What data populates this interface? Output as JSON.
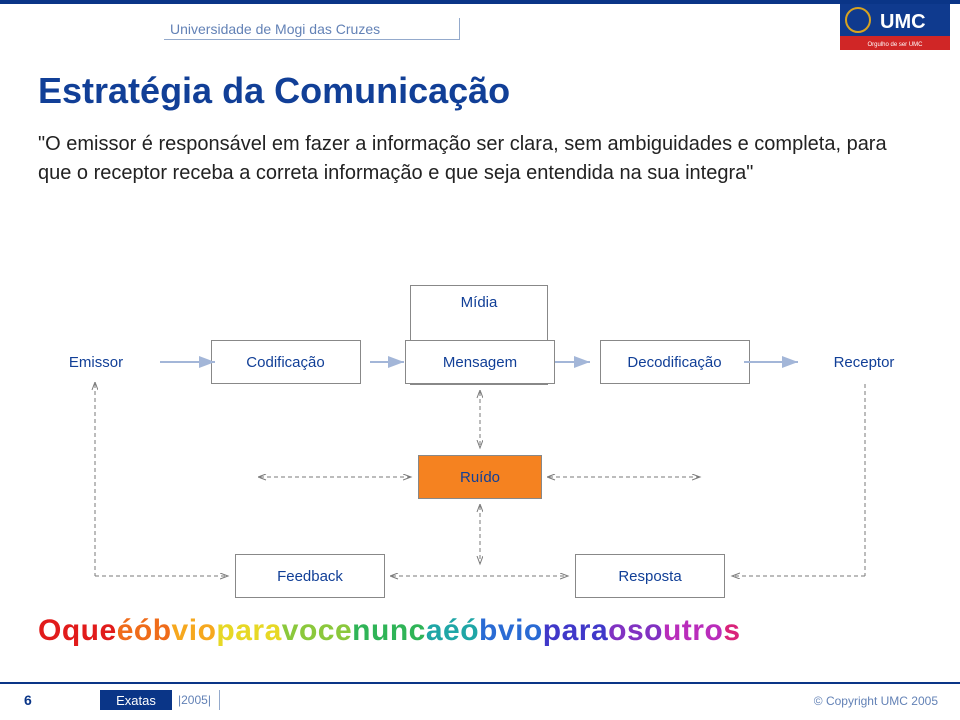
{
  "header": {
    "university": "Universidade de Mogi das Cruzes"
  },
  "logo": {
    "top_text": "UMC",
    "tagline": "Orgulho de ser UMC",
    "blue": "#0f3a8e",
    "red": "#d02626",
    "gold": "#d7a320"
  },
  "title": "Estratégia da Comunicação",
  "quote": "\"O emissor é responsável em fazer a informação ser clara, sem ambiguidades e completa, para que o receptor receba a correta informação e que seja entendida na sua integra\"",
  "diagram": {
    "type": "flowchart",
    "node_border": "#888888",
    "node_text_color": "#113f97",
    "node_bg": "#ffffff",
    "noise_bg": "#f58220",
    "arrow_color": "#a3b6d8",
    "dashed_color": "#7a7a7a",
    "node_fontsize": 15,
    "nodes": {
      "emissor": "Emissor",
      "codificacao": "Codificação",
      "midia": "Mídia",
      "mensagem": "Mensagem",
      "decodificacao": "Decodificação",
      "receptor": "Receptor",
      "ruido": "Ruído",
      "feedback": "Feedback",
      "resposta": "Resposta"
    }
  },
  "rainbow_text": "O que é óbvio para voce nunca é óbvio para os outros",
  "rainbow": {
    "stops": [
      "#e11b1b",
      "#ef6c1a",
      "#f6a81e",
      "#e7d825",
      "#8bc83c",
      "#2fb457",
      "#1fa6a6",
      "#2a6bd4",
      "#4038c9",
      "#8132c2",
      "#b92dbb",
      "#d9237a"
    ],
    "fontsize": 30,
    "weight": "bold"
  },
  "footer": {
    "page": "6",
    "area": "Exatas",
    "year": "2005",
    "copyright": "© Copyright UMC 2005"
  },
  "colors": {
    "brand_blue": "#0a3587",
    "soft_blue": "#6382b6",
    "rule_blue": "#94aacc"
  }
}
